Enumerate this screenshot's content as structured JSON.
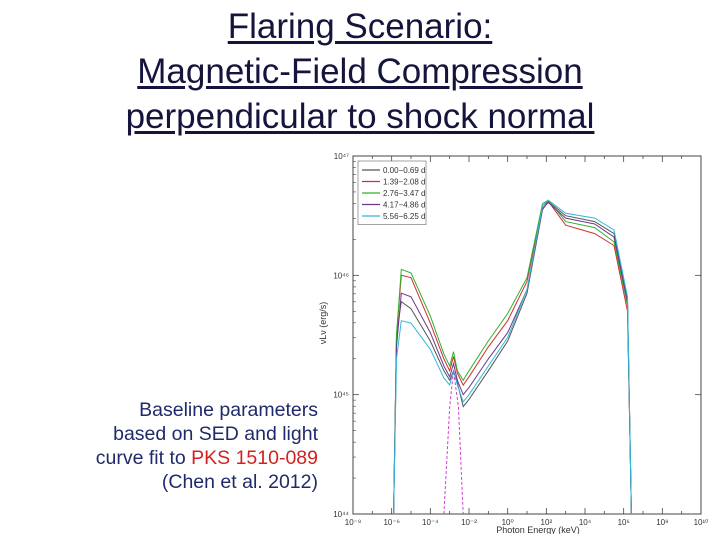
{
  "title_lines": [
    "Flaring Scenario:",
    "Magnetic-Field Compression",
    "perpendicular to shock normal"
  ],
  "caption": {
    "line1": "Baseline parameters",
    "line2": "based on SED and light",
    "line3_prefix": "curve fit to ",
    "line3_highlight": "PKS 1510-089",
    "line4": "(Chen et al. 2012)"
  },
  "colors": {
    "title": "#14143c",
    "caption": "#1f2a6b",
    "highlight": "#d42020"
  },
  "chart_data": {
    "type": "line",
    "xlabel": "Photon Energy (keV)",
    "ylabel": "νLν (erg/s)",
    "xscale": "log",
    "yscale": "log",
    "xlim": [
      1e-08,
      10000000000.0
    ],
    "ylim": [
      1e+44,
      1e+47
    ],
    "x_tick_labels": [
      "10⁻⁸",
      "10⁻⁶",
      "10⁻⁴",
      "10⁻²",
      "10⁰",
      "10²",
      "10⁴",
      "10⁶",
      "10⁸",
      "10¹⁰"
    ],
    "y_tick_labels": [
      "10⁴⁴",
      "10⁴⁵",
      "10⁴⁶",
      "10⁴⁷"
    ],
    "grid": false,
    "legend_position": "top-left",
    "series": [
      {
        "name": "0.00−0.69 d",
        "color": "#555555",
        "dash": "",
        "points": [
          [
            -5.9,
            44.0
          ],
          [
            -5.75,
            45.5
          ],
          [
            -5.5,
            45.78
          ],
          [
            -5.0,
            45.72
          ],
          [
            -4.0,
            45.45
          ],
          [
            -3.3,
            45.2
          ],
          [
            -3.0,
            45.12
          ],
          [
            -2.8,
            45.2
          ],
          [
            -2.6,
            45.1
          ],
          [
            -2.3,
            44.9
          ],
          [
            -2.0,
            44.96
          ],
          [
            -1.0,
            45.2
          ],
          [
            0.0,
            45.45
          ],
          [
            1.0,
            45.85
          ],
          [
            1.8,
            46.55
          ],
          [
            2.1,
            46.62
          ],
          [
            3.0,
            46.5
          ],
          [
            4.5,
            46.45
          ],
          [
            5.5,
            46.35
          ],
          [
            6.2,
            45.8
          ],
          [
            6.4,
            44.0
          ]
        ]
      },
      {
        "name": "1.39−2.08 d",
        "color": "#d03030",
        "dash": "",
        "points": [
          [
            -5.9,
            44.0
          ],
          [
            -5.75,
            45.5
          ],
          [
            -5.5,
            46.0
          ],
          [
            -5.0,
            45.98
          ],
          [
            -4.0,
            45.6
          ],
          [
            -3.3,
            45.3
          ],
          [
            -3.0,
            45.2
          ],
          [
            -2.8,
            45.32
          ],
          [
            -2.6,
            45.18
          ],
          [
            -2.3,
            45.08
          ],
          [
            -2.0,
            45.15
          ],
          [
            -1.0,
            45.4
          ],
          [
            0.0,
            45.62
          ],
          [
            1.0,
            45.95
          ],
          [
            1.8,
            46.58
          ],
          [
            2.1,
            46.62
          ],
          [
            3.0,
            46.42
          ],
          [
            4.5,
            46.35
          ],
          [
            5.5,
            46.25
          ],
          [
            6.2,
            45.7
          ],
          [
            6.4,
            44.0
          ]
        ]
      },
      {
        "name": "2.76−3.47 d",
        "color": "#30b030",
        "dash": "",
        "points": [
          [
            -5.9,
            44.0
          ],
          [
            -5.75,
            45.5
          ],
          [
            -5.5,
            46.05
          ],
          [
            -5.0,
            46.02
          ],
          [
            -4.0,
            45.66
          ],
          [
            -3.3,
            45.34
          ],
          [
            -3.0,
            45.24
          ],
          [
            -2.8,
            45.36
          ],
          [
            -2.6,
            45.2
          ],
          [
            -2.3,
            45.12
          ],
          [
            -2.0,
            45.2
          ],
          [
            -1.0,
            45.45
          ],
          [
            0.0,
            45.68
          ],
          [
            1.0,
            45.98
          ],
          [
            1.8,
            46.6
          ],
          [
            2.1,
            46.63
          ],
          [
            3.0,
            46.45
          ],
          [
            4.5,
            46.4
          ],
          [
            5.5,
            46.28
          ],
          [
            6.2,
            45.75
          ],
          [
            6.4,
            44.0
          ]
        ]
      },
      {
        "name": "4.17−4.86 d",
        "color": "#6a3a8a",
        "dash": "",
        "points": [
          [
            -5.9,
            44.0
          ],
          [
            -5.75,
            45.4
          ],
          [
            -5.5,
            45.85
          ],
          [
            -5.0,
            45.82
          ],
          [
            -4.0,
            45.52
          ],
          [
            -3.3,
            45.24
          ],
          [
            -3.0,
            45.15
          ],
          [
            -2.8,
            45.26
          ],
          [
            -2.6,
            45.12
          ],
          [
            -2.3,
            45.0
          ],
          [
            -2.0,
            45.06
          ],
          [
            -1.0,
            45.3
          ],
          [
            0.0,
            45.52
          ],
          [
            1.0,
            45.88
          ],
          [
            1.8,
            46.56
          ],
          [
            2.1,
            46.61
          ],
          [
            3.0,
            46.48
          ],
          [
            4.5,
            46.43
          ],
          [
            5.5,
            46.32
          ],
          [
            6.2,
            45.78
          ],
          [
            6.4,
            44.0
          ]
        ]
      },
      {
        "name": "5.56−6.25 d",
        "color": "#30b8d8",
        "dash": "",
        "points": [
          [
            -5.9,
            44.0
          ],
          [
            -5.75,
            45.3
          ],
          [
            -5.5,
            45.62
          ],
          [
            -5.0,
            45.6
          ],
          [
            -4.0,
            45.38
          ],
          [
            -3.3,
            45.14
          ],
          [
            -3.0,
            45.08
          ],
          [
            -2.8,
            45.2
          ],
          [
            -2.6,
            45.08
          ],
          [
            -2.3,
            44.94
          ],
          [
            -2.0,
            45.0
          ],
          [
            -1.0,
            45.24
          ],
          [
            0.0,
            45.48
          ],
          [
            1.0,
            45.88
          ],
          [
            1.8,
            46.58
          ],
          [
            2.1,
            46.63
          ],
          [
            3.0,
            46.52
          ],
          [
            4.5,
            46.48
          ],
          [
            5.5,
            46.38
          ],
          [
            6.2,
            45.82
          ],
          [
            6.4,
            44.0
          ]
        ]
      },
      {
        "name": "",
        "color": "#d040d0",
        "dash": "3,2",
        "points": [
          [
            -3.3,
            44.0
          ],
          [
            -3.0,
            44.9
          ],
          [
            -2.8,
            45.2
          ],
          [
            -2.55,
            44.9
          ],
          [
            -2.3,
            44.0
          ]
        ]
      }
    ]
  }
}
